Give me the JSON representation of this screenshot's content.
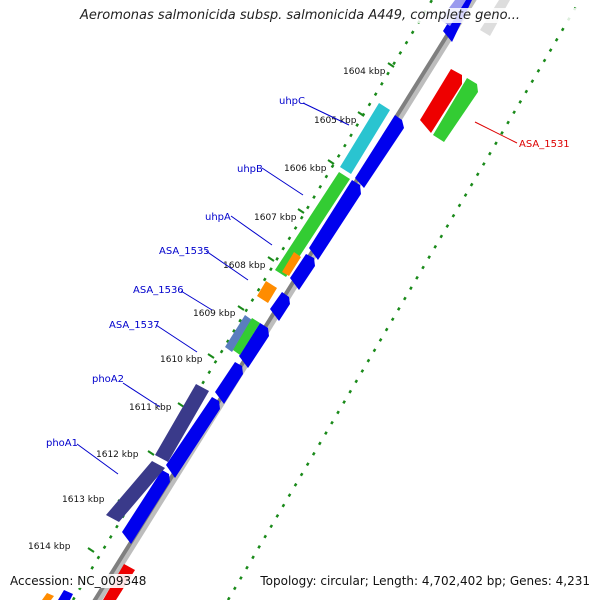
{
  "title": "Aeromonas salmonicida subsp. salmonicida A449, complete geno...",
  "footer": {
    "accession": "Accession: NC_009348",
    "summary": "Topology: circular; Length: 4,702,402 bp; Genes: 4,231"
  },
  "colors": {
    "backbone": "#7f7f7f",
    "tick": "#1a8a1a",
    "cds": "#0000ee",
    "label_blue": "#0000cc",
    "label_red": "#dd0000"
  },
  "ticks": [
    {
      "label": "1604 kbp"
    },
    {
      "label": "1605 kbp"
    },
    {
      "label": "1606 kbp"
    },
    {
      "label": "1607 kbp"
    },
    {
      "label": "1608 kbp"
    },
    {
      "label": "1609 kbp"
    },
    {
      "label": "1610 kbp"
    },
    {
      "label": "1611 kbp"
    },
    {
      "label": "1612 kbp"
    },
    {
      "label": "1613 kbp"
    },
    {
      "label": "1614 kbp"
    }
  ],
  "gene_labels": [
    {
      "name": "uhpC",
      "color": "#0000cc"
    },
    {
      "name": "uhpB",
      "color": "#0000cc"
    },
    {
      "name": "uhpA",
      "color": "#0000cc"
    },
    {
      "name": "ASA_1535",
      "color": "#0000cc"
    },
    {
      "name": "ASA_1536",
      "color": "#0000cc"
    },
    {
      "name": "ASA_1537",
      "color": "#0000cc"
    },
    {
      "name": "phoA2",
      "color": "#0000cc"
    },
    {
      "name": "phoA1",
      "color": "#0000cc"
    },
    {
      "name": "ASA_1531",
      "color": "#dd0000"
    }
  ]
}
